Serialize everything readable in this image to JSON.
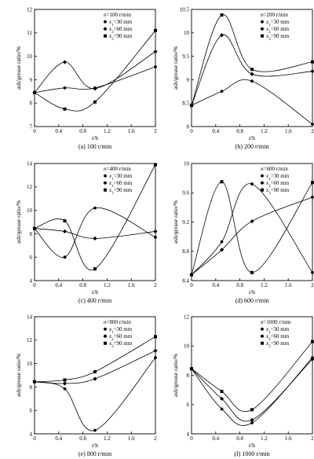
{
  "chart_data": [
    {
      "type": "line",
      "caption": "(a) 100 r/min",
      "speed_label": "n=100 r/min",
      "xlabel": "t/h",
      "ylabel": "ash/grease ratio/%",
      "xlim": [
        0,
        2
      ],
      "ylim": [
        7,
        12
      ],
      "xticks": [
        0,
        0.4,
        0.8,
        1.2,
        1.6,
        2
      ],
      "yticks": [
        7,
        8,
        9,
        10,
        11,
        12
      ],
      "x": [
        0,
        0.5,
        1,
        2
      ],
      "series": [
        {
          "name": "x1=30 mm",
          "values": [
            8.45,
            8.65,
            8.65,
            9.55
          ]
        },
        {
          "name": "x2=60 mm",
          "values": [
            8.45,
            9.75,
            8.62,
            10.2
          ]
        },
        {
          "name": "x3=90 mm",
          "values": [
            8.45,
            7.75,
            8.05,
            11.1
          ]
        }
      ]
    },
    {
      "type": "line",
      "caption": "(b) 200 r/min",
      "speed_label": "n=200 r/min",
      "xlabel": "t/h",
      "ylabel": "ash/grease ratio/%",
      "xlim": [
        0,
        2
      ],
      "ylim": [
        8,
        10.5
      ],
      "xticks": [
        0,
        0.4,
        0.8,
        1.2,
        1.6,
        2
      ],
      "yticks": [
        8,
        8.5,
        9,
        9.5,
        10,
        10.5
      ],
      "x": [
        0,
        0.5,
        1,
        2
      ],
      "series": [
        {
          "name": "x1=30 mm",
          "values": [
            8.45,
            8.75,
            8.97,
            8.05
          ]
        },
        {
          "name": "x2=60 mm",
          "values": [
            8.45,
            9.95,
            9.12,
            9.18
          ]
        },
        {
          "name": "x3=90 mm",
          "values": [
            8.45,
            10.38,
            9.22,
            9.38
          ]
        }
      ]
    },
    {
      "type": "line",
      "caption": "(c) 400 r/min",
      "speed_label": "n=400 r/min",
      "xlabel": "t/h",
      "ylabel": "ash/grease ratio/%",
      "xlim": [
        0,
        2
      ],
      "ylim": [
        4,
        14
      ],
      "xticks": [
        0,
        0.4,
        0.8,
        1.2,
        1.6,
        2
      ],
      "yticks": [
        4,
        6,
        8,
        10,
        12,
        14
      ],
      "x": [
        0,
        0.5,
        1,
        2
      ],
      "series": [
        {
          "name": "x1=30 mm",
          "values": [
            8.45,
            6.0,
            10.2,
            7.7
          ]
        },
        {
          "name": "x2=60 mm",
          "values": [
            8.45,
            8.2,
            7.6,
            8.2
          ]
        },
        {
          "name": "x3=90 mm",
          "values": [
            8.45,
            9.1,
            5.0,
            13.9
          ]
        }
      ]
    },
    {
      "type": "line",
      "caption": "(d) 600 r/min",
      "speed_label": "n=600 r/min",
      "xlabel": "t/h",
      "ylabel": "ash/grease ratio/%",
      "xlim": [
        0,
        2
      ],
      "ylim": [
        8.4,
        10.0
      ],
      "xticks": [
        0,
        0.4,
        0.8,
        1.2,
        1.6,
        2
      ],
      "yticks": [
        8.4,
        8.8,
        9.2,
        9.6,
        10.0
      ],
      "x": [
        0,
        0.5,
        1,
        2
      ],
      "series": [
        {
          "name": "x1=30 mm",
          "values": [
            8.48,
            8.93,
            9.72,
            8.51
          ]
        },
        {
          "name": "x2=60 mm",
          "values": [
            8.48,
            8.82,
            9.21,
            9.54
          ]
        },
        {
          "name": "x3=90 mm",
          "values": [
            8.48,
            9.75,
            8.51,
            9.74
          ]
        }
      ]
    },
    {
      "type": "line",
      "caption": "(e) 800 r/min",
      "speed_label": "n=800 r/min",
      "xlabel": "t/h",
      "ylabel": "ash/grease ratio/%",
      "xlim": [
        0,
        2
      ],
      "ylim": [
        4,
        14
      ],
      "xticks": [
        0,
        0.4,
        0.8,
        1.2,
        1.6,
        2
      ],
      "yticks": [
        4,
        6,
        8,
        10,
        12,
        14
      ],
      "x": [
        0,
        0.5,
        1,
        2
      ],
      "series": [
        {
          "name": "x1=30 mm",
          "values": [
            8.45,
            7.85,
            4.3,
            10.5
          ]
        },
        {
          "name": "x2=60 mm",
          "values": [
            8.45,
            8.3,
            8.7,
            11.1
          ]
        },
        {
          "name": "x3=90 mm",
          "values": [
            8.45,
            8.6,
            9.3,
            12.3
          ]
        }
      ]
    },
    {
      "type": "line",
      "caption": "(f) 1000 r/min",
      "speed_label": "n=1000 r/min",
      "xlabel": "t/h",
      "ylabel": "ash/grease ratio/%",
      "xlim": [
        0,
        2
      ],
      "ylim": [
        4,
        12
      ],
      "xticks": [
        0,
        0.4,
        0.8,
        1.2,
        1.6,
        2
      ],
      "yticks": [
        4,
        6,
        8,
        10,
        12
      ],
      "x": [
        0,
        0.5,
        1,
        2
      ],
      "series": [
        {
          "name": "x1=30 mm",
          "values": [
            8.45,
            5.7,
            4.75,
            9.2
          ]
        },
        {
          "name": "x2=60 mm",
          "values": [
            8.45,
            6.4,
            4.95,
            9.1
          ]
        },
        {
          "name": "x3=90 mm",
          "values": [
            8.45,
            6.9,
            5.65,
            10.3
          ]
        }
      ]
    }
  ]
}
